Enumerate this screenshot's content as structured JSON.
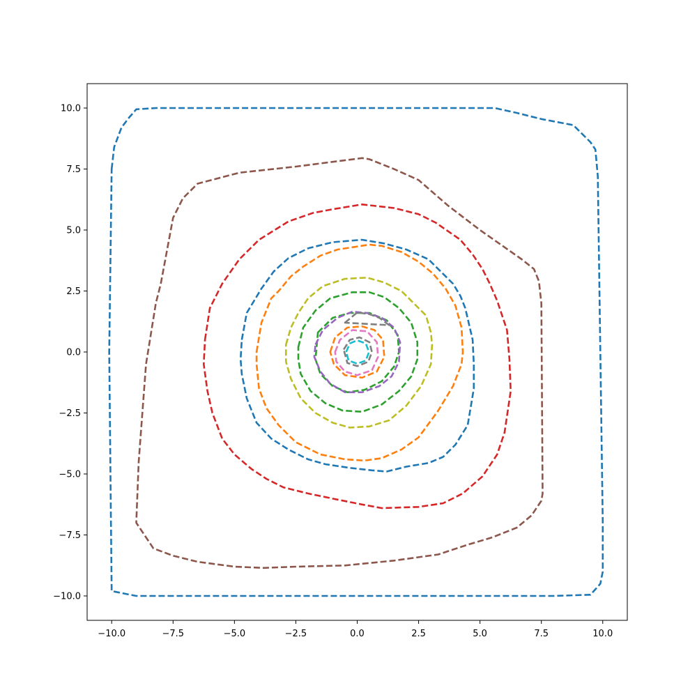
{
  "chart_data": {
    "type": "line",
    "title": "",
    "xlabel": "",
    "ylabel": "",
    "xlim": [
      -11,
      11
    ],
    "ylim": [
      -11,
      11
    ],
    "xticks": [
      -10,
      -7.5,
      -5,
      -2.5,
      0,
      2.5,
      5,
      7.5,
      10
    ],
    "yticks": [
      -10,
      -7.5,
      -5,
      -2.5,
      0,
      2.5,
      5,
      7.5,
      10
    ],
    "xtick_labels": [
      "−10.0",
      "−7.5",
      "−5.0",
      "−2.5",
      "0.0",
      "2.5",
      "5.0",
      "7.5",
      "10.0"
    ],
    "ytick_labels": [
      "−10.0",
      "−7.5",
      "−5.0",
      "−2.5",
      "0.0",
      "2.5",
      "5.0",
      "7.5",
      "10.0"
    ],
    "grid": false,
    "line_style": "dashed",
    "series": [
      {
        "color": "#1f77b4",
        "closed": true,
        "points": [
          [
            -10.0,
            7.5
          ],
          [
            -9.9,
            8.4
          ],
          [
            -9.6,
            9.2
          ],
          [
            -9.3,
            9.6
          ],
          [
            -9.0,
            9.95
          ],
          [
            -8.2,
            10.0
          ],
          [
            5.6,
            10.0
          ],
          [
            6.5,
            9.8
          ],
          [
            7.5,
            9.55
          ],
          [
            8.8,
            9.3
          ],
          [
            9.5,
            8.6
          ],
          [
            9.7,
            8.3
          ],
          [
            9.8,
            7.2
          ],
          [
            9.9,
            0.0
          ],
          [
            10.0,
            -7.0
          ],
          [
            10.0,
            -9.0
          ],
          [
            9.9,
            -9.5
          ],
          [
            9.5,
            -9.95
          ],
          [
            8.0,
            -10.0
          ],
          [
            -9.0,
            -10.0
          ],
          [
            -10.0,
            -9.8
          ],
          [
            -10.1,
            0.0
          ],
          [
            -10.0,
            7.5
          ]
        ]
      },
      {
        "color": "#8c564b",
        "closed": true,
        "points": [
          [
            -8.0,
            2.8
          ],
          [
            -7.5,
            5.5
          ],
          [
            -7.1,
            6.3
          ],
          [
            -6.5,
            6.9
          ],
          [
            -4.8,
            7.35
          ],
          [
            -2.5,
            7.6
          ],
          [
            0.2,
            7.95
          ],
          [
            0.5,
            7.9
          ],
          [
            1.5,
            7.5
          ],
          [
            2.5,
            7.05
          ],
          [
            3.7,
            6.0
          ],
          [
            5.0,
            5.0
          ],
          [
            6.7,
            3.8
          ],
          [
            7.2,
            3.4
          ],
          [
            7.4,
            2.9
          ],
          [
            7.5,
            2.0
          ],
          [
            7.55,
            -5.8
          ],
          [
            7.5,
            -6.1
          ],
          [
            7.1,
            -6.7
          ],
          [
            6.5,
            -7.2
          ],
          [
            5.5,
            -7.6
          ],
          [
            4.5,
            -7.9
          ],
          [
            3.3,
            -8.3
          ],
          [
            1.5,
            -8.55
          ],
          [
            -0.5,
            -8.75
          ],
          [
            -2.5,
            -8.8
          ],
          [
            -3.8,
            -8.85
          ],
          [
            -5.0,
            -8.8
          ],
          [
            -6.5,
            -8.6
          ],
          [
            -7.5,
            -8.35
          ],
          [
            -8.3,
            -8.05
          ],
          [
            -9.0,
            -7.0
          ],
          [
            -8.9,
            -4.5
          ],
          [
            -8.6,
            -0.5
          ],
          [
            -8.2,
            2.0
          ],
          [
            -8.0,
            2.8
          ]
        ]
      },
      {
        "color": "#d62728",
        "closed": true,
        "points": [
          [
            -6.2,
            0.5
          ],
          [
            -6.0,
            1.8
          ],
          [
            -5.5,
            2.8
          ],
          [
            -4.8,
            3.8
          ],
          [
            -4.0,
            4.6
          ],
          [
            -2.8,
            5.35
          ],
          [
            -1.8,
            5.7
          ],
          [
            -1.0,
            5.85
          ],
          [
            0.2,
            6.05
          ],
          [
            1.5,
            5.9
          ],
          [
            2.5,
            5.65
          ],
          [
            3.2,
            5.3
          ],
          [
            4.2,
            4.6
          ],
          [
            4.7,
            4.0
          ],
          [
            5.1,
            3.4
          ],
          [
            5.4,
            2.8
          ],
          [
            5.7,
            2.1
          ],
          [
            6.1,
            0.9
          ],
          [
            6.2,
            -0.3
          ],
          [
            6.25,
            -1.6
          ],
          [
            6.0,
            -3.3
          ],
          [
            5.7,
            -4.2
          ],
          [
            5.1,
            -5.1
          ],
          [
            4.3,
            -5.8
          ],
          [
            3.5,
            -6.2
          ],
          [
            2.5,
            -6.35
          ],
          [
            1.0,
            -6.4
          ],
          [
            0.2,
            -6.25
          ],
          [
            -0.8,
            -6.05
          ],
          [
            -2.0,
            -5.8
          ],
          [
            -3.0,
            -5.55
          ],
          [
            -3.7,
            -5.2
          ],
          [
            -4.3,
            -4.8
          ],
          [
            -5.0,
            -4.2
          ],
          [
            -5.5,
            -3.55
          ],
          [
            -5.9,
            -2.5
          ],
          [
            -6.1,
            -1.6
          ],
          [
            -6.25,
            -0.5
          ],
          [
            -6.2,
            0.5
          ]
        ]
      },
      {
        "color": "#1f77b4",
        "closed": true,
        "points": [
          [
            -4.7,
            0.5
          ],
          [
            -4.5,
            1.6
          ],
          [
            -3.9,
            2.6
          ],
          [
            -3.4,
            3.3
          ],
          [
            -2.8,
            3.85
          ],
          [
            -2.0,
            4.25
          ],
          [
            -1.0,
            4.5
          ],
          [
            0.2,
            4.6
          ],
          [
            1.1,
            4.45
          ],
          [
            2.0,
            4.2
          ],
          [
            2.9,
            3.8
          ],
          [
            3.4,
            3.3
          ],
          [
            3.9,
            2.8
          ],
          [
            4.2,
            2.3
          ],
          [
            4.4,
            1.8
          ],
          [
            4.7,
            0.5
          ],
          [
            4.75,
            -0.5
          ],
          [
            4.75,
            -1.5
          ],
          [
            4.5,
            -3.0
          ],
          [
            4.0,
            -3.8
          ],
          [
            3.5,
            -4.3
          ],
          [
            2.9,
            -4.55
          ],
          [
            2.0,
            -4.7
          ],
          [
            1.2,
            -4.9
          ],
          [
            0.6,
            -4.85
          ],
          [
            -0.3,
            -4.75
          ],
          [
            -1.3,
            -4.6
          ],
          [
            -2.0,
            -4.4
          ],
          [
            -2.8,
            -4.0
          ],
          [
            -3.5,
            -3.55
          ],
          [
            -4.1,
            -2.9
          ],
          [
            -4.5,
            -1.9
          ],
          [
            -4.7,
            -0.9
          ],
          [
            -4.75,
            -0.3
          ],
          [
            -4.7,
            0.5
          ]
        ]
      },
      {
        "color": "#ff7f0e",
        "closed": true,
        "points": [
          [
            -4.1,
            0.0
          ],
          [
            -3.9,
            1.2
          ],
          [
            -3.5,
            2.2
          ],
          [
            -3.2,
            2.5
          ],
          [
            -2.7,
            3.1
          ],
          [
            -2.2,
            3.5
          ],
          [
            -1.5,
            3.95
          ],
          [
            -0.8,
            4.2
          ],
          [
            0.5,
            4.4
          ],
          [
            1.0,
            4.35
          ],
          [
            1.8,
            4.1
          ],
          [
            2.5,
            3.7
          ],
          [
            3.1,
            3.2
          ],
          [
            3.6,
            2.6
          ],
          [
            4.0,
            1.9
          ],
          [
            4.25,
            1.0
          ],
          [
            4.3,
            0.0
          ],
          [
            4.25,
            -0.5
          ],
          [
            3.9,
            -1.4
          ],
          [
            3.3,
            -2.4
          ],
          [
            2.5,
            -3.5
          ],
          [
            1.8,
            -4.0
          ],
          [
            1.0,
            -4.35
          ],
          [
            0.3,
            -4.45
          ],
          [
            -0.5,
            -4.4
          ],
          [
            -1.5,
            -4.2
          ],
          [
            -2.5,
            -3.7
          ],
          [
            -3.2,
            -3.0
          ],
          [
            -3.7,
            -2.3
          ],
          [
            -4.0,
            -1.5
          ],
          [
            -4.1,
            -0.5
          ],
          [
            -4.1,
            0.0
          ]
        ]
      },
      {
        "color": "#bcbd22",
        "closed": true,
        "points": [
          [
            -2.9,
            0.3
          ],
          [
            -2.7,
            1.0
          ],
          [
            -2.4,
            1.6
          ],
          [
            -2.0,
            2.2
          ],
          [
            -1.4,
            2.7
          ],
          [
            -0.5,
            3.0
          ],
          [
            0.4,
            3.05
          ],
          [
            1.1,
            2.85
          ],
          [
            1.8,
            2.5
          ],
          [
            2.3,
            2.0
          ],
          [
            2.8,
            1.5
          ],
          [
            3.0,
            0.8
          ],
          [
            3.05,
            0.3
          ],
          [
            3.0,
            -0.5
          ],
          [
            2.6,
            -1.4
          ],
          [
            2.0,
            -2.2
          ],
          [
            1.3,
            -2.8
          ],
          [
            0.5,
            -3.05
          ],
          [
            -0.3,
            -3.1
          ],
          [
            -1.0,
            -2.9
          ],
          [
            -1.7,
            -2.5
          ],
          [
            -2.3,
            -1.9
          ],
          [
            -2.7,
            -1.1
          ],
          [
            -2.9,
            -0.4
          ],
          [
            -2.9,
            0.3
          ]
        ]
      },
      {
        "color": "#2ca02c",
        "closed": true,
        "points": [
          [
            -2.4,
            0.2
          ],
          [
            -2.2,
            1.0
          ],
          [
            -1.7,
            1.7
          ],
          [
            -1.1,
            2.2
          ],
          [
            -0.2,
            2.45
          ],
          [
            0.5,
            2.45
          ],
          [
            1.1,
            2.25
          ],
          [
            1.7,
            1.8
          ],
          [
            2.2,
            1.2
          ],
          [
            2.45,
            0.4
          ],
          [
            2.45,
            -0.3
          ],
          [
            2.2,
            -1.0
          ],
          [
            1.7,
            -1.6
          ],
          [
            1.0,
            -2.15
          ],
          [
            0.2,
            -2.45
          ],
          [
            -0.6,
            -2.4
          ],
          [
            -1.3,
            -2.1
          ],
          [
            -1.9,
            -1.6
          ],
          [
            -2.3,
            -0.9
          ],
          [
            -2.4,
            -0.3
          ],
          [
            -2.4,
            0.2
          ]
        ]
      },
      {
        "color": "#2ca02c",
        "closed": true,
        "points": [
          [
            -1.6,
            0.8
          ],
          [
            -1.0,
            1.4
          ],
          [
            -0.3,
            1.6
          ],
          [
            0.5,
            1.6
          ],
          [
            1.2,
            1.3
          ],
          [
            1.65,
            0.7
          ],
          [
            1.7,
            0.0
          ],
          [
            1.5,
            -0.6
          ],
          [
            1.0,
            -1.2
          ],
          [
            0.3,
            -1.55
          ],
          [
            -0.4,
            -1.65
          ],
          [
            -1.0,
            -1.4
          ],
          [
            -1.5,
            -0.9
          ],
          [
            -1.7,
            -0.3
          ],
          [
            -1.6,
            0.8
          ]
        ]
      },
      {
        "color": "#9467bd",
        "closed": true,
        "points": [
          [
            -1.7,
            0.3
          ],
          [
            -1.4,
            0.9
          ],
          [
            -0.8,
            1.4
          ],
          [
            -0.2,
            1.65
          ],
          [
            0.4,
            1.6
          ],
          [
            1.0,
            1.4
          ],
          [
            1.5,
            1.0
          ],
          [
            1.75,
            0.4
          ],
          [
            1.7,
            -0.4
          ],
          [
            1.4,
            -1.0
          ],
          [
            0.9,
            -1.4
          ],
          [
            0.2,
            -1.65
          ],
          [
            -0.5,
            -1.65
          ],
          [
            -1.1,
            -1.3
          ],
          [
            -1.5,
            -0.8
          ],
          [
            -1.75,
            -0.2
          ],
          [
            -1.7,
            0.3
          ]
        ]
      },
      {
        "color": "#7f7f7f",
        "closed": true,
        "points": [
          [
            -0.5,
            1.2
          ],
          [
            0.0,
            1.62
          ],
          [
            0.5,
            1.55
          ],
          [
            0.9,
            1.4
          ],
          [
            1.3,
            1.1
          ]
        ]
      },
      {
        "color": "#ff7f0e",
        "closed": true,
        "points": [
          [
            -1.1,
            0.0
          ],
          [
            -0.9,
            0.6
          ],
          [
            -0.4,
            1.0
          ],
          [
            0.2,
            1.05
          ],
          [
            0.7,
            0.9
          ],
          [
            1.05,
            0.5
          ],
          [
            1.1,
            -0.2
          ],
          [
            0.8,
            -0.8
          ],
          [
            0.2,
            -1.05
          ],
          [
            -0.5,
            -0.95
          ],
          [
            -0.95,
            -0.5
          ],
          [
            -1.1,
            0.0
          ]
        ]
      },
      {
        "color": "#e377c2",
        "closed": true,
        "points": [
          [
            -0.9,
            0.0
          ],
          [
            -0.7,
            0.5
          ],
          [
            -0.2,
            0.9
          ],
          [
            0.4,
            0.85
          ],
          [
            0.8,
            0.4
          ],
          [
            0.85,
            -0.2
          ],
          [
            0.6,
            -0.75
          ],
          [
            0.0,
            -0.95
          ],
          [
            -0.5,
            -0.8
          ],
          [
            -0.85,
            -0.4
          ],
          [
            -0.9,
            0.0
          ]
        ]
      },
      {
        "color": "#7f7f7f",
        "closed": true,
        "points": [
          [
            -0.55,
            0.1
          ],
          [
            -0.3,
            0.5
          ],
          [
            0.1,
            0.6
          ],
          [
            0.5,
            0.4
          ],
          [
            0.6,
            0.0
          ],
          [
            0.45,
            -0.4
          ],
          [
            0.0,
            -0.58
          ],
          [
            -0.4,
            -0.45
          ],
          [
            -0.55,
            0.1
          ]
        ]
      },
      {
        "color": "#17becf",
        "closed": true,
        "points": [
          [
            -0.45,
            0.0
          ],
          [
            -0.3,
            0.35
          ],
          [
            0.0,
            0.48
          ],
          [
            0.35,
            0.35
          ],
          [
            0.48,
            0.0
          ],
          [
            0.35,
            -0.35
          ],
          [
            0.0,
            -0.48
          ],
          [
            -0.35,
            -0.35
          ],
          [
            -0.45,
            0.0
          ]
        ]
      }
    ]
  }
}
